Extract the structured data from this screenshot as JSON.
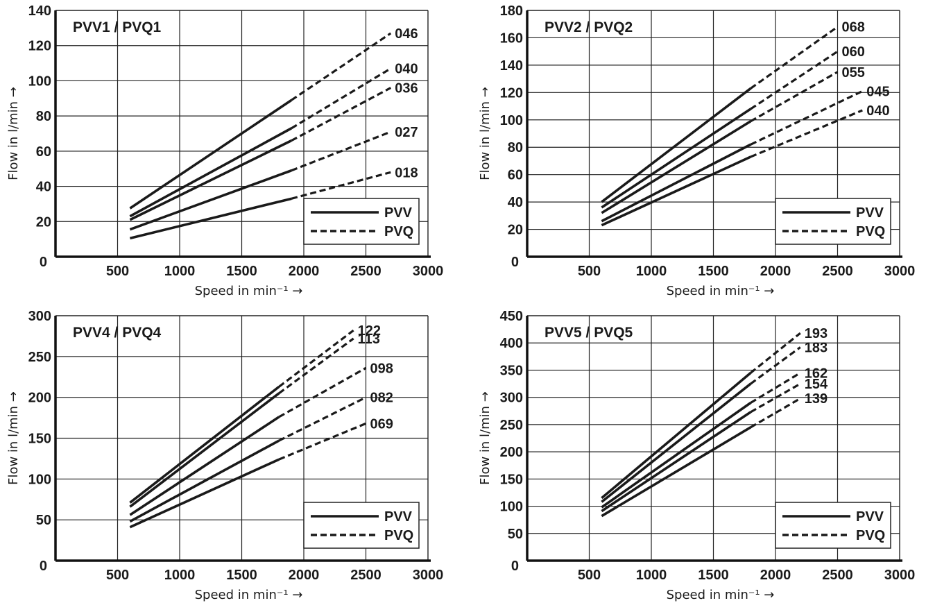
{
  "chart_data": [
    {
      "type": "line",
      "title": "PVV1 / PVQ1",
      "xlabel": "Speed in min⁻¹ →",
      "ylabel": "Flow in l/min →",
      "xlim": [
        0,
        3000
      ],
      "ylim": [
        0,
        140
      ],
      "x_ticks": [
        500,
        1000,
        1500,
        2000,
        2500,
        3000
      ],
      "y_ticks": [
        0,
        20,
        40,
        60,
        80,
        100,
        120,
        140
      ],
      "grid": true,
      "legend_position": "bottom-right",
      "legend": [
        {
          "label": "PVV",
          "style": "solid"
        },
        {
          "label": "PVQ",
          "style": "dashed"
        }
      ],
      "series": [
        {
          "name": "046",
          "x_start": 600,
          "y_start": 27.5,
          "pvv_end_x": 1900,
          "pvv_end_y": 89,
          "x_end": 2700,
          "y_end": 127
        },
        {
          "name": "040",
          "x_start": 600,
          "y_start": 23,
          "pvv_end_x": 1900,
          "pvv_end_y": 73,
          "x_end": 2700,
          "y_end": 107
        },
        {
          "name": "036",
          "x_start": 600,
          "y_start": 21,
          "pvv_end_x": 1900,
          "pvv_end_y": 66,
          "x_end": 2700,
          "y_end": 96
        },
        {
          "name": "027",
          "x_start": 600,
          "y_start": 15.5,
          "pvv_end_x": 1900,
          "pvv_end_y": 49,
          "x_end": 2700,
          "y_end": 71
        },
        {
          "name": "018",
          "x_start": 600,
          "y_start": 10.5,
          "pvv_end_x": 1900,
          "pvv_end_y": 33,
          "x_end": 2700,
          "y_end": 48
        }
      ]
    },
    {
      "type": "line",
      "title": "PVV2 / PVQ2",
      "xlabel": "Speed in min⁻¹ →",
      "ylabel": "Flow in l/min →",
      "xlim": [
        0,
        3000
      ],
      "ylim": [
        0,
        180
      ],
      "x_ticks": [
        500,
        1000,
        1500,
        2000,
        2500,
        3000
      ],
      "y_ticks": [
        0,
        20,
        40,
        60,
        80,
        100,
        120,
        140,
        160,
        180
      ],
      "grid": true,
      "legend_position": "bottom-right",
      "legend": [
        {
          "label": "PVV",
          "style": "solid"
        },
        {
          "label": "PVQ",
          "style": "dashed"
        }
      ],
      "series": [
        {
          "name": "068",
          "x_start": 600,
          "y_start": 40,
          "pvv_end_x": 1800,
          "pvv_end_y": 123,
          "x_end": 2500,
          "y_end": 168
        },
        {
          "name": "060",
          "x_start": 600,
          "y_start": 36,
          "pvv_end_x": 1800,
          "pvv_end_y": 108,
          "x_end": 2500,
          "y_end": 150
        },
        {
          "name": "055",
          "x_start": 600,
          "y_start": 32,
          "pvv_end_x": 1800,
          "pvv_end_y": 99,
          "x_end": 2500,
          "y_end": 135
        },
        {
          "name": "045",
          "x_start": 600,
          "y_start": 26,
          "pvv_end_x": 1800,
          "pvv_end_y": 82,
          "x_end": 2700,
          "y_end": 121
        },
        {
          "name": "040",
          "x_start": 600,
          "y_start": 23,
          "pvv_end_x": 1800,
          "pvv_end_y": 73,
          "x_end": 2700,
          "y_end": 107
        }
      ]
    },
    {
      "type": "line",
      "title": "PVV4 / PVQ4",
      "xlabel": "Speed in min⁻¹ →",
      "ylabel": "Flow in l/min →",
      "xlim": [
        0,
        3000
      ],
      "ylim": [
        0,
        300
      ],
      "x_ticks": [
        500,
        1000,
        1500,
        2000,
        2500,
        3000
      ],
      "y_ticks": [
        0,
        50,
        100,
        150,
        200,
        250,
        300
      ],
      "grid": true,
      "legend_position": "bottom-right",
      "legend": [
        {
          "label": "PVV",
          "style": "solid"
        },
        {
          "label": "PVQ",
          "style": "dashed"
        }
      ],
      "series": [
        {
          "name": "122",
          "x_start": 600,
          "y_start": 71,
          "pvv_end_x": 1800,
          "pvv_end_y": 213,
          "x_end": 2400,
          "y_end": 282
        },
        {
          "name": "113",
          "x_start": 600,
          "y_start": 66,
          "pvv_end_x": 1800,
          "pvv_end_y": 205,
          "x_end": 2400,
          "y_end": 272
        },
        {
          "name": "098",
          "x_start": 600,
          "y_start": 56,
          "pvv_end_x": 1800,
          "pvv_end_y": 176,
          "x_end": 2500,
          "y_end": 236
        },
        {
          "name": "082",
          "x_start": 600,
          "y_start": 48,
          "pvv_end_x": 1800,
          "pvv_end_y": 147,
          "x_end": 2500,
          "y_end": 200
        },
        {
          "name": "069",
          "x_start": 600,
          "y_start": 41,
          "pvv_end_x": 1800,
          "pvv_end_y": 124,
          "x_end": 2500,
          "y_end": 168
        }
      ]
    },
    {
      "type": "line",
      "title": "PVV5 / PVQ5",
      "xlabel": "Speed in min⁻¹ →",
      "ylabel": "Flow in l/min →",
      "xlim": [
        0,
        3000
      ],
      "ylim": [
        0,
        450
      ],
      "x_ticks": [
        500,
        1000,
        1500,
        2000,
        2500,
        3000
      ],
      "y_ticks": [
        0,
        50,
        100,
        150,
        200,
        250,
        300,
        350,
        400,
        450
      ],
      "grid": true,
      "legend_position": "bottom-right",
      "legend": [
        {
          "label": "PVV",
          "style": "solid"
        },
        {
          "label": "PVQ",
          "style": "dashed"
        }
      ],
      "series": [
        {
          "name": "193",
          "x_start": 600,
          "y_start": 115,
          "pvv_end_x": 1800,
          "pvv_end_y": 345,
          "x_end": 2200,
          "y_end": 418
        },
        {
          "name": "183",
          "x_start": 600,
          "y_start": 108,
          "pvv_end_x": 1800,
          "pvv_end_y": 325,
          "x_end": 2200,
          "y_end": 392
        },
        {
          "name": "162",
          "x_start": 600,
          "y_start": 98,
          "pvv_end_x": 1800,
          "pvv_end_y": 290,
          "x_end": 2200,
          "y_end": 345
        },
        {
          "name": "154",
          "x_start": 600,
          "y_start": 91,
          "pvv_end_x": 1800,
          "pvv_end_y": 273,
          "x_end": 2200,
          "y_end": 325
        },
        {
          "name": "139",
          "x_start": 600,
          "y_start": 82,
          "pvv_end_x": 1800,
          "pvv_end_y": 245,
          "x_end": 2200,
          "y_end": 298
        }
      ]
    }
  ]
}
